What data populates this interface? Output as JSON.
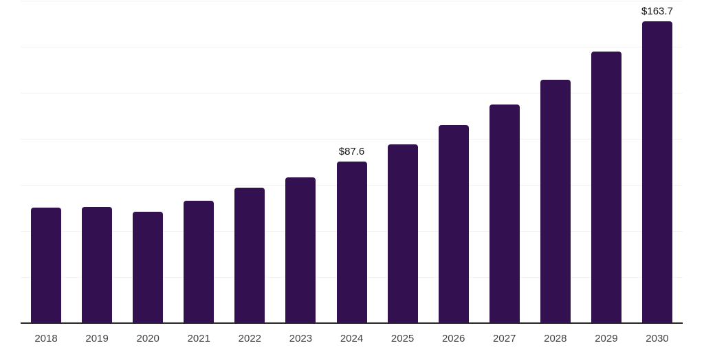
{
  "chart_data": {
    "type": "bar",
    "title": "",
    "categories": [
      "2018",
      "2019",
      "2020",
      "2021",
      "2022",
      "2023",
      "2024",
      "2025",
      "2026",
      "2027",
      "2028",
      "2029",
      "2030"
    ],
    "values": [
      62.6,
      62.9,
      60.3,
      66.4,
      73.4,
      79.0,
      87.6,
      96.9,
      107.4,
      118.6,
      132.0,
      147.3,
      163.7
    ],
    "value_labels": {
      "2024": "$87.6",
      "2030": "$163.7"
    },
    "xlabel": "",
    "ylabel": "",
    "ylim": [
      0,
      175
    ],
    "grid_interval": 25,
    "grid": true,
    "legend": false,
    "colors": {
      "bar": "#331150",
      "axis": "#262626",
      "grid": "#f2f2f2",
      "tick_label": "#404040",
      "value_label": "#111111",
      "background": "#ffffff"
    }
  }
}
